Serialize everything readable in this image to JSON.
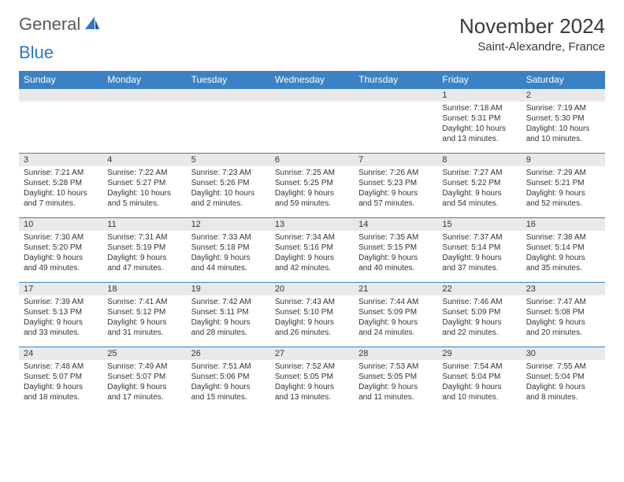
{
  "logo": {
    "general": "General",
    "blue": "Blue"
  },
  "title": "November 2024",
  "location": "Saint-Alexandre, France",
  "colors": {
    "header_bg": "#3b82c4",
    "header_text": "#ffffff",
    "daynum_bg": "#e9e9e9",
    "border": "#3b82c4",
    "title_text": "#3a3a3a",
    "logo_gray": "#5a5a5a",
    "logo_blue": "#2f78c3"
  },
  "weekdays": [
    "Sunday",
    "Monday",
    "Tuesday",
    "Wednesday",
    "Thursday",
    "Friday",
    "Saturday"
  ],
  "weeks": [
    [
      null,
      null,
      null,
      null,
      null,
      {
        "n": "1",
        "sr": "7:18 AM",
        "ss": "5:31 PM",
        "dl": "10 hours and 13 minutes."
      },
      {
        "n": "2",
        "sr": "7:19 AM",
        "ss": "5:30 PM",
        "dl": "10 hours and 10 minutes."
      }
    ],
    [
      {
        "n": "3",
        "sr": "7:21 AM",
        "ss": "5:28 PM",
        "dl": "10 hours and 7 minutes."
      },
      {
        "n": "4",
        "sr": "7:22 AM",
        "ss": "5:27 PM",
        "dl": "10 hours and 5 minutes."
      },
      {
        "n": "5",
        "sr": "7:23 AM",
        "ss": "5:26 PM",
        "dl": "10 hours and 2 minutes."
      },
      {
        "n": "6",
        "sr": "7:25 AM",
        "ss": "5:25 PM",
        "dl": "9 hours and 59 minutes."
      },
      {
        "n": "7",
        "sr": "7:26 AM",
        "ss": "5:23 PM",
        "dl": "9 hours and 57 minutes."
      },
      {
        "n": "8",
        "sr": "7:27 AM",
        "ss": "5:22 PM",
        "dl": "9 hours and 54 minutes."
      },
      {
        "n": "9",
        "sr": "7:29 AM",
        "ss": "5:21 PM",
        "dl": "9 hours and 52 minutes."
      }
    ],
    [
      {
        "n": "10",
        "sr": "7:30 AM",
        "ss": "5:20 PM",
        "dl": "9 hours and 49 minutes."
      },
      {
        "n": "11",
        "sr": "7:31 AM",
        "ss": "5:19 PM",
        "dl": "9 hours and 47 minutes."
      },
      {
        "n": "12",
        "sr": "7:33 AM",
        "ss": "5:18 PM",
        "dl": "9 hours and 44 minutes."
      },
      {
        "n": "13",
        "sr": "7:34 AM",
        "ss": "5:16 PM",
        "dl": "9 hours and 42 minutes."
      },
      {
        "n": "14",
        "sr": "7:35 AM",
        "ss": "5:15 PM",
        "dl": "9 hours and 40 minutes."
      },
      {
        "n": "15",
        "sr": "7:37 AM",
        "ss": "5:14 PM",
        "dl": "9 hours and 37 minutes."
      },
      {
        "n": "16",
        "sr": "7:38 AM",
        "ss": "5:14 PM",
        "dl": "9 hours and 35 minutes."
      }
    ],
    [
      {
        "n": "17",
        "sr": "7:39 AM",
        "ss": "5:13 PM",
        "dl": "9 hours and 33 minutes."
      },
      {
        "n": "18",
        "sr": "7:41 AM",
        "ss": "5:12 PM",
        "dl": "9 hours and 31 minutes."
      },
      {
        "n": "19",
        "sr": "7:42 AM",
        "ss": "5:11 PM",
        "dl": "9 hours and 28 minutes."
      },
      {
        "n": "20",
        "sr": "7:43 AM",
        "ss": "5:10 PM",
        "dl": "9 hours and 26 minutes."
      },
      {
        "n": "21",
        "sr": "7:44 AM",
        "ss": "5:09 PM",
        "dl": "9 hours and 24 minutes."
      },
      {
        "n": "22",
        "sr": "7:46 AM",
        "ss": "5:09 PM",
        "dl": "9 hours and 22 minutes."
      },
      {
        "n": "23",
        "sr": "7:47 AM",
        "ss": "5:08 PM",
        "dl": "9 hours and 20 minutes."
      }
    ],
    [
      {
        "n": "24",
        "sr": "7:48 AM",
        "ss": "5:07 PM",
        "dl": "9 hours and 18 minutes."
      },
      {
        "n": "25",
        "sr": "7:49 AM",
        "ss": "5:07 PM",
        "dl": "9 hours and 17 minutes."
      },
      {
        "n": "26",
        "sr": "7:51 AM",
        "ss": "5:06 PM",
        "dl": "9 hours and 15 minutes."
      },
      {
        "n": "27",
        "sr": "7:52 AM",
        "ss": "5:05 PM",
        "dl": "9 hours and 13 minutes."
      },
      {
        "n": "28",
        "sr": "7:53 AM",
        "ss": "5:05 PM",
        "dl": "9 hours and 11 minutes."
      },
      {
        "n": "29",
        "sr": "7:54 AM",
        "ss": "5:04 PM",
        "dl": "9 hours and 10 minutes."
      },
      {
        "n": "30",
        "sr": "7:55 AM",
        "ss": "5:04 PM",
        "dl": "9 hours and 8 minutes."
      }
    ]
  ],
  "labels": {
    "sunrise": "Sunrise: ",
    "sunset": "Sunset: ",
    "daylight": "Daylight: "
  }
}
